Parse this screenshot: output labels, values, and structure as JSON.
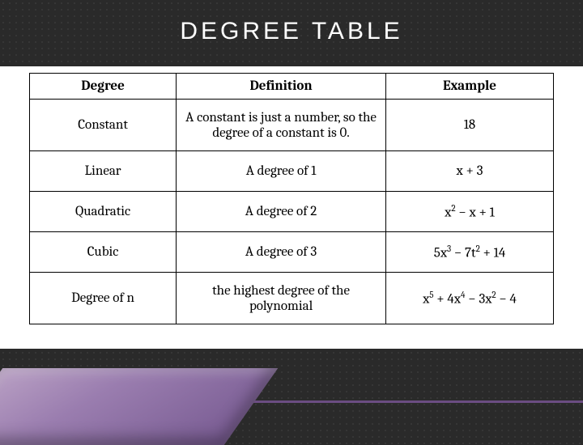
{
  "title": "DEGREE  TABLE",
  "table": {
    "columns": [
      "Degree",
      "Definition",
      "Example"
    ],
    "rows": [
      {
        "degree": "Constant",
        "definition": "A constant is just a number, so the degree of a constant is 0.",
        "example_html": "18",
        "row_height": "tall"
      },
      {
        "degree": "Linear",
        "definition": "A degree of 1",
        "example_html": "x + 3",
        "row_height": "med"
      },
      {
        "degree": "Quadratic",
        "definition": "A degree of 2",
        "example_html": "x<sup>2</sup> − x + 1",
        "row_height": "med"
      },
      {
        "degree": "Cubic",
        "definition": "A degree of 3",
        "example_html": "5x<sup>3</sup> − 7t<sup>2</sup> + 14",
        "row_height": "med"
      },
      {
        "degree": "Degree of n",
        "definition": "the highest degree of the polynomial",
        "example_html": "x<sup>5</sup> + 4x<sup>4</sup> − 3x<sup>2</sup> − 4",
        "row_height": "tall"
      }
    ],
    "col_widths": [
      "28%",
      "40%",
      "32%"
    ],
    "border_color": "#000000",
    "header_fontweight": 700,
    "cell_fontsize": 17,
    "font_family": "Cambria, Georgia, serif",
    "background_color": "#ffffff"
  },
  "slide": {
    "bg_color": "#2a2a2a",
    "dot_color": "#3a3a3a",
    "title_color": "#ffffff",
    "title_fontsize": 30,
    "title_letterspacing": 4,
    "accent_gradient": [
      "#b9a0c4",
      "#9a7daf",
      "#785b92"
    ],
    "baseline_color": "#6b4d82"
  }
}
